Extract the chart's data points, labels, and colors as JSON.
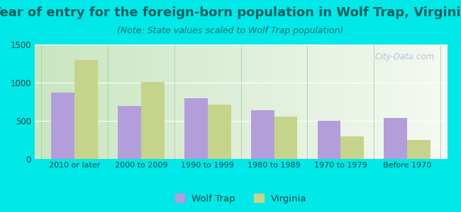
{
  "title": "Year of entry for the foreign-born population in Wolf Trap, Virginia",
  "subtitle": "(Note: State values scaled to Wolf Trap population)",
  "categories": [
    "2010 or later",
    "2000 to 2009",
    "1990 to 1999",
    "1980 to 1989",
    "1970 to 1979",
    "Before 1970"
  ],
  "wolf_trap": [
    870,
    695,
    800,
    640,
    500,
    535
  ],
  "virginia": [
    1295,
    1005,
    715,
    560,
    295,
    250
  ],
  "wolf_trap_color": "#b39ddb",
  "virginia_color": "#c5d48a",
  "background_outer": "#00e8e8",
  "background_inner_left": "#c8e6c0",
  "background_inner_right": "#f5f9f2",
  "ylim": [
    0,
    1500
  ],
  "yticks": [
    0,
    500,
    1000,
    1500
  ],
  "bar_width": 0.35,
  "title_fontsize": 13,
  "subtitle_fontsize": 9,
  "legend_labels": [
    "Wolf Trap",
    "Virginia"
  ],
  "watermark": "City-Data.com",
  "title_color": "#006060",
  "subtitle_color": "#007070",
  "tick_color": "#004444",
  "separator_color": "#aaccaa"
}
